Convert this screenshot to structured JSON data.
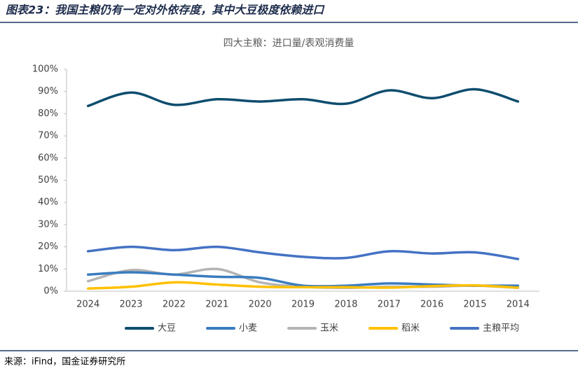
{
  "header": {
    "title": "图表23：我国主粮仍有一定对外依存度，其中大豆极度依赖进口"
  },
  "chart_data": {
    "type": "line",
    "title": "四大主粮：进口量/表观消费量",
    "categories": [
      "2024",
      "2023",
      "2022",
      "2021",
      "2020",
      "2019",
      "2018",
      "2017",
      "2016",
      "2015",
      "2014"
    ],
    "series": [
      {
        "name": "大豆",
        "color": "#0e4d6e",
        "values": [
          83.5,
          89.5,
          84,
          86.5,
          85.5,
          86.5,
          84.5,
          90.5,
          87,
          91,
          85.5
        ]
      },
      {
        "name": "小麦",
        "color": "#3a7cbf",
        "values": [
          7.5,
          8.5,
          7.5,
          6.5,
          6,
          2.5,
          2.5,
          3.5,
          3,
          2.5,
          2.5
        ]
      },
      {
        "name": "玉米",
        "color": "#b4b4b4",
        "values": [
          4.5,
          9.5,
          7.5,
          10,
          4,
          2,
          1.5,
          2,
          2,
          2.5,
          1.5
        ]
      },
      {
        "name": "稻米",
        "color": "#ffc000",
        "values": [
          1.2,
          2,
          4,
          3,
          2,
          1.8,
          1.8,
          1.6,
          2.3,
          2.6,
          1.6
        ]
      },
      {
        "name": "主粮平均",
        "color": "#4472c4",
        "values": [
          18,
          20,
          18.5,
          20,
          17.5,
          15.5,
          15,
          18,
          17,
          17.5,
          14.5
        ]
      }
    ],
    "ylim": [
      0,
      100
    ],
    "yticks": [
      {
        "value": 0,
        "label": "0%"
      },
      {
        "value": 10,
        "label": "10%"
      },
      {
        "value": 20,
        "label": "20%"
      },
      {
        "value": 30,
        "label": "30%"
      },
      {
        "value": 40,
        "label": "40%"
      },
      {
        "value": 50,
        "label": "50%"
      },
      {
        "value": 60,
        "label": "60%"
      },
      {
        "value": 70,
        "label": "70%"
      },
      {
        "value": 80,
        "label": "80%"
      },
      {
        "value": 90,
        "label": "90%"
      },
      {
        "value": 100,
        "label": "100%"
      }
    ],
    "legend": "bottom"
  },
  "footer": {
    "source": "来源：iFind，国金证券研究所"
  }
}
